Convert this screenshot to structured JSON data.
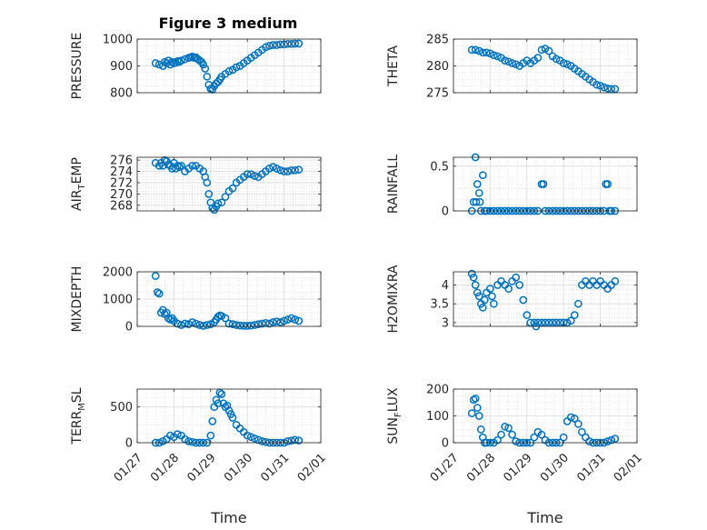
{
  "figure_title": "Figure 3 medium",
  "marker_color": "#0072BD",
  "chart_data": [
    {
      "type": "scatter",
      "id": "pressure",
      "title": "Figure 3 medium",
      "ylabel": "PRESSURE",
      "ylabel_parts": [
        "PRESSURE"
      ],
      "ylim": [
        800,
        1000
      ],
      "yticks": [
        800,
        900,
        1000
      ],
      "ytick_labels": [
        "800",
        "900",
        "1000"
      ],
      "xlim": [
        0,
        5
      ],
      "xtick_labels": [
        "01/27",
        "01/28",
        "01/29",
        "01/30",
        "01/31",
        "02/01"
      ],
      "xlabel": "",
      "grid": true,
      "x": [
        0.5,
        0.6,
        0.7,
        0.75,
        0.8,
        0.85,
        0.9,
        0.95,
        1.0,
        1.05,
        1.1,
        1.15,
        1.2,
        1.3,
        1.4,
        1.45,
        1.5,
        1.55,
        1.6,
        1.65,
        1.7,
        1.75,
        1.8,
        1.85,
        1.9,
        1.95,
        2.0,
        2.05,
        2.1,
        2.15,
        2.2,
        2.25,
        2.3,
        2.4,
        2.5,
        2.6,
        2.7,
        2.8,
        2.9,
        3.0,
        3.1,
        3.2,
        3.3,
        3.4,
        3.5,
        3.6,
        3.7,
        3.8,
        3.9,
        4.0,
        4.1,
        4.2,
        4.3,
        4.4
      ],
      "y": [
        910,
        905,
        900,
        915,
        910,
        920,
        905,
        915,
        910,
        912,
        918,
        915,
        920,
        925,
        930,
        932,
        935,
        930,
        932,
        925,
        920,
        915,
        905,
        890,
        860,
        830,
        815,
        812,
        825,
        835,
        840,
        850,
        860,
        870,
        880,
        885,
        895,
        900,
        910,
        920,
        930,
        940,
        950,
        960,
        970,
        975,
        978,
        978,
        980,
        980,
        982,
        982,
        983,
        983
      ]
    },
    {
      "type": "scatter",
      "id": "theta",
      "ylabel": "THETA",
      "ylabel_parts": [
        "THETA"
      ],
      "ylim": [
        275,
        285
      ],
      "yticks": [
        275,
        280,
        285
      ],
      "ytick_labels": [
        "275",
        "280",
        "285"
      ],
      "xlim": [
        0,
        5
      ],
      "xtick_labels": [
        "01/27",
        "01/28",
        "01/29",
        "01/30",
        "01/31",
        "02/01"
      ],
      "xlabel": "",
      "grid": true,
      "x": [
        0.5,
        0.6,
        0.7,
        0.8,
        0.9,
        1.0,
        1.1,
        1.2,
        1.3,
        1.4,
        1.5,
        1.6,
        1.7,
        1.8,
        1.9,
        2.0,
        2.1,
        2.2,
        2.3,
        2.4,
        2.5,
        2.6,
        2.7,
        2.8,
        2.9,
        3.0,
        3.1,
        3.2,
        3.3,
        3.4,
        3.5,
        3.6,
        3.7,
        3.8,
        3.9,
        4.0,
        4.1,
        4.2,
        4.3,
        4.4
      ],
      "y": [
        283,
        283,
        282.8,
        282.5,
        282.5,
        282.3,
        282,
        281.8,
        281.5,
        281,
        280.8,
        280.5,
        280.3,
        280,
        280.5,
        281,
        280.5,
        281,
        281.5,
        283,
        283.2,
        282.8,
        281.8,
        281.3,
        281,
        280.5,
        280.3,
        280,
        279.5,
        279,
        278.5,
        278,
        277.5,
        277,
        276.5,
        276.3,
        276,
        275.8,
        275.7,
        275.7
      ]
    },
    {
      "type": "scatter",
      "id": "air_temp",
      "ylabel": "AIR_TEMP",
      "ylabel_parts": [
        "AIR",
        "T",
        "EMP"
      ],
      "ylim": [
        267,
        276.5
      ],
      "yticks": [
        268,
        270,
        272,
        274,
        276
      ],
      "ytick_labels": [
        "268",
        "270",
        "272",
        "274",
        "276"
      ],
      "xlim": [
        0,
        5
      ],
      "xtick_labels": [
        "01/27",
        "01/28",
        "01/29",
        "01/30",
        "01/31",
        "02/01"
      ],
      "xlabel": "",
      "grid": true,
      "x": [
        0.5,
        0.6,
        0.65,
        0.7,
        0.75,
        0.8,
        0.85,
        0.9,
        0.95,
        1.0,
        1.05,
        1.1,
        1.15,
        1.2,
        1.3,
        1.4,
        1.5,
        1.6,
        1.7,
        1.8,
        1.85,
        1.9,
        1.95,
        2.0,
        2.05,
        2.1,
        2.15,
        2.2,
        2.3,
        2.4,
        2.5,
        2.6,
        2.7,
        2.8,
        2.9,
        3.0,
        3.1,
        3.2,
        3.3,
        3.4,
        3.5,
        3.6,
        3.7,
        3.8,
        3.9,
        4.0,
        4.1,
        4.2,
        4.3,
        4.4
      ],
      "y": [
        275.5,
        275,
        275.5,
        275,
        276,
        275.8,
        275.2,
        275,
        274.5,
        275.5,
        274.5,
        275,
        274.8,
        275,
        274,
        274.5,
        275,
        275,
        274.5,
        274,
        273,
        272,
        270,
        268.5,
        267.5,
        267.2,
        267.8,
        268.3,
        268.5,
        269.5,
        270.5,
        271,
        272,
        272.5,
        273,
        273.5,
        273.5,
        273.2,
        273,
        273.5,
        274,
        274.5,
        274.8,
        274.5,
        274.2,
        274,
        274,
        274.2,
        274.2,
        274.3
      ]
    },
    {
      "type": "scatter",
      "id": "rainfall",
      "ylabel": "RAINFALL",
      "ylabel_parts": [
        "RAINFALL"
      ],
      "ylim": [
        0,
        0.6
      ],
      "yticks": [
        0,
        0.5
      ],
      "ytick_labels": [
        "0",
        "0.5"
      ],
      "xlim": [
        0,
        5
      ],
      "xtick_labels": [
        "01/27",
        "01/28",
        "01/29",
        "01/30",
        "01/31",
        "02/01"
      ],
      "xlabel": "",
      "grid": true,
      "x": [
        0.5,
        0.55,
        0.6,
        0.62,
        0.65,
        0.7,
        0.72,
        0.75,
        0.8,
        0.85,
        0.9,
        1.0,
        1.1,
        1.2,
        1.3,
        1.4,
        1.5,
        1.6,
        1.7,
        1.8,
        1.9,
        2.0,
        2.1,
        2.2,
        2.3,
        2.4,
        2.45,
        2.5,
        2.6,
        2.7,
        2.8,
        2.9,
        3.0,
        3.1,
        3.2,
        3.3,
        3.4,
        3.5,
        3.6,
        3.7,
        3.8,
        3.9,
        4.0,
        4.1,
        4.15,
        4.2,
        4.25,
        4.3,
        4.4
      ],
      "y": [
        0,
        0.1,
        0.6,
        0.1,
        0.3,
        0.2,
        0.1,
        0,
        0.4,
        0,
        0,
        0,
        0,
        0,
        0,
        0,
        0,
        0,
        0,
        0,
        0,
        0,
        0,
        0,
        0,
        0.3,
        0.3,
        0,
        0,
        0,
        0,
        0,
        0,
        0,
        0,
        0,
        0,
        0,
        0,
        0,
        0,
        0,
        0,
        0,
        0.3,
        0.3,
        0,
        0,
        0
      ]
    },
    {
      "type": "scatter",
      "id": "mixdepth",
      "ylabel": "MIXDEPTH",
      "ylabel_parts": [
        "MIXDEPTH"
      ],
      "ylim": [
        0,
        2000
      ],
      "yticks": [
        0,
        1000,
        2000
      ],
      "ytick_labels": [
        "0",
        "1000",
        "2000"
      ],
      "xlim": [
        0,
        5
      ],
      "xtick_labels": [
        "01/27",
        "01/28",
        "01/29",
        "01/30",
        "01/31",
        "02/01"
      ],
      "xlabel": "",
      "grid": true,
      "x": [
        0.5,
        0.55,
        0.6,
        0.65,
        0.7,
        0.75,
        0.8,
        0.85,
        0.9,
        0.95,
        1.0,
        1.1,
        1.2,
        1.3,
        1.4,
        1.5,
        1.6,
        1.7,
        1.8,
        1.9,
        2.0,
        2.1,
        2.15,
        2.2,
        2.25,
        2.3,
        2.4,
        2.5,
        2.6,
        2.7,
        2.8,
        2.9,
        3.0,
        3.1,
        3.2,
        3.3,
        3.4,
        3.5,
        3.6,
        3.7,
        3.8,
        3.9,
        4.0,
        4.1,
        4.2,
        4.3,
        4.4
      ],
      "y": [
        1850,
        1250,
        1200,
        500,
        600,
        450,
        500,
        300,
        250,
        300,
        200,
        100,
        50,
        100,
        80,
        150,
        100,
        50,
        20,
        50,
        80,
        150,
        250,
        350,
        400,
        380,
        300,
        100,
        80,
        50,
        30,
        20,
        20,
        30,
        50,
        80,
        100,
        120,
        100,
        150,
        180,
        150,
        200,
        250,
        300,
        250,
        200
      ]
    },
    {
      "type": "scatter",
      "id": "h2omixra",
      "ylabel": "H2OMIXRA",
      "ylabel_parts": [
        "H2OMIXRA"
      ],
      "ylim": [
        2.9,
        4.35
      ],
      "yticks": [
        3,
        3.5,
        4
      ],
      "ytick_labels": [
        "3",
        "3.5",
        "4"
      ],
      "xlim": [
        0,
        5
      ],
      "xtick_labels": [
        "01/27",
        "01/28",
        "01/29",
        "01/30",
        "01/31",
        "02/01"
      ],
      "xlabel": "",
      "grid": true,
      "x": [
        0.5,
        0.55,
        0.6,
        0.65,
        0.7,
        0.75,
        0.8,
        0.85,
        0.9,
        1.0,
        1.05,
        1.1,
        1.2,
        1.3,
        1.4,
        1.5,
        1.6,
        1.7,
        1.8,
        1.9,
        2.0,
        2.1,
        2.2,
        2.25,
        2.3,
        2.4,
        2.5,
        2.6,
        2.7,
        2.8,
        2.9,
        3.0,
        3.1,
        3.2,
        3.3,
        3.4,
        3.5,
        3.6,
        3.7,
        3.8,
        3.9,
        4.0,
        4.1,
        4.2,
        4.3,
        4.4
      ],
      "y": [
        4.3,
        4.2,
        4.0,
        3.8,
        3.7,
        3.5,
        3.4,
        3.6,
        3.8,
        3.9,
        3.7,
        3.5,
        4.0,
        4.1,
        4.0,
        3.9,
        4.1,
        4.2,
        4.0,
        3.6,
        3.2,
        3.0,
        3.0,
        2.9,
        3.0,
        3.0,
        3.0,
        3.0,
        3.0,
        3.0,
        3.0,
        3.0,
        3.0,
        3.05,
        3.2,
        3.5,
        4.0,
        4.1,
        4.0,
        4.1,
        4.0,
        4.1,
        4.0,
        3.9,
        4.0,
        4.1
      ]
    },
    {
      "type": "scatter",
      "id": "terr_msl",
      "ylabel": "TERR_MSL",
      "ylabel_parts": [
        "TERR",
        "M",
        "SL"
      ],
      "ylim": [
        0,
        750
      ],
      "yticks": [
        0,
        500
      ],
      "ytick_labels": [
        "0",
        "500"
      ],
      "xlim": [
        0,
        5
      ],
      "xtick_labels": [
        "01/27",
        "01/28",
        "01/29",
        "01/30",
        "01/31",
        "02/01"
      ],
      "xlabel": "Time",
      "grid": true,
      "x": [
        0.5,
        0.6,
        0.7,
        0.8,
        0.9,
        1.0,
        1.1,
        1.2,
        1.3,
        1.4,
        1.5,
        1.6,
        1.7,
        1.8,
        1.9,
        2.0,
        2.05,
        2.1,
        2.15,
        2.2,
        2.25,
        2.3,
        2.35,
        2.4,
        2.45,
        2.5,
        2.55,
        2.6,
        2.7,
        2.8,
        2.9,
        3.0,
        3.1,
        3.2,
        3.3,
        3.4,
        3.5,
        3.6,
        3.7,
        3.8,
        3.9,
        4.0,
        4.1,
        4.2,
        4.3,
        4.4
      ],
      "y": [
        0,
        0,
        20,
        50,
        100,
        80,
        120,
        100,
        50,
        20,
        10,
        0,
        0,
        0,
        0,
        100,
        300,
        500,
        600,
        550,
        700,
        680,
        550,
        500,
        520,
        450,
        400,
        350,
        250,
        200,
        150,
        100,
        80,
        60,
        40,
        20,
        10,
        0,
        0,
        0,
        0,
        0,
        20,
        30,
        40,
        30
      ]
    },
    {
      "type": "scatter",
      "id": "sun_flux",
      "ylabel": "SUN_FLUX",
      "ylabel_parts": [
        "SUN",
        "F",
        "LUX"
      ],
      "ylim": [
        0,
        200
      ],
      "yticks": [
        0,
        100,
        200
      ],
      "ytick_labels": [
        "0",
        "100",
        "200"
      ],
      "xlim": [
        0,
        5
      ],
      "xtick_labels": [
        "01/27",
        "01/28",
        "01/29",
        "01/30",
        "01/31",
        "02/01"
      ],
      "xlabel": "Time",
      "grid": true,
      "x": [
        0.5,
        0.55,
        0.6,
        0.65,
        0.7,
        0.75,
        0.8,
        0.85,
        0.9,
        1.0,
        1.1,
        1.2,
        1.3,
        1.4,
        1.5,
        1.6,
        1.7,
        1.8,
        1.9,
        2.0,
        2.1,
        2.2,
        2.3,
        2.4,
        2.5,
        2.6,
        2.7,
        2.8,
        2.9,
        3.0,
        3.1,
        3.2,
        3.3,
        3.4,
        3.5,
        3.6,
        3.7,
        3.8,
        3.9,
        4.0,
        4.1,
        4.2,
        4.3,
        4.4
      ],
      "y": [
        110,
        160,
        165,
        130,
        100,
        50,
        20,
        0,
        0,
        0,
        0,
        10,
        30,
        60,
        55,
        30,
        5,
        0,
        0,
        0,
        0,
        20,
        40,
        30,
        10,
        0,
        0,
        0,
        0,
        20,
        80,
        95,
        90,
        70,
        40,
        20,
        5,
        0,
        0,
        0,
        0,
        5,
        10,
        15
      ]
    }
  ]
}
